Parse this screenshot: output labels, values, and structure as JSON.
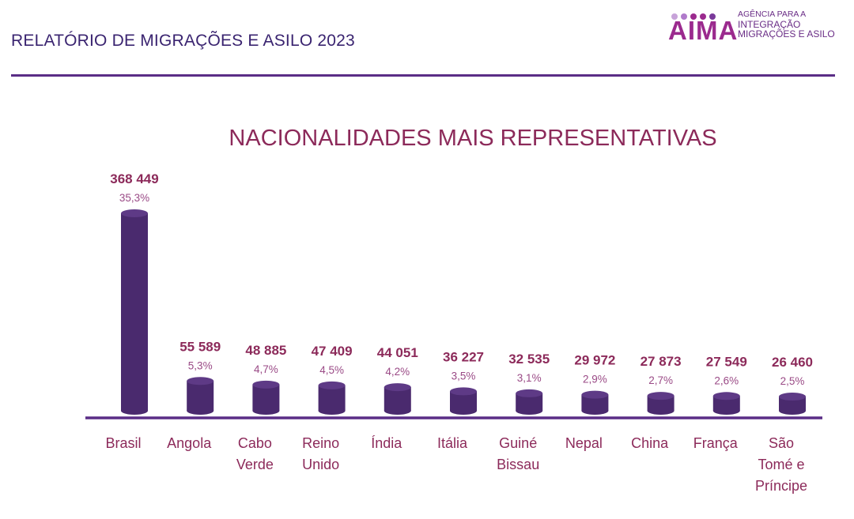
{
  "report": {
    "title": "RELATÓRIO DE MIGRAÇÕES E ASILO 2023"
  },
  "logo": {
    "word": "AIMA",
    "line1": "AGÊNCIA PARA A",
    "line2": "INTEGRAÇÃO",
    "line3": "MIGRAÇÕES E ASILO",
    "dot_colors": [
      "#c7a3d9",
      "#b07acb",
      "#9b2a8e",
      "#9b2a8e",
      "#7a3a9a"
    ]
  },
  "chart_data": {
    "type": "bar",
    "title": "NACIONALIDADES MAIS REPRESENTATIVAS",
    "xlabel": "",
    "ylabel": "",
    "categories": [
      [
        "Brasil"
      ],
      [
        "Angola"
      ],
      [
        "Cabo",
        "Verde"
      ],
      [
        "Reino",
        "Unido"
      ],
      [
        "Índia"
      ],
      [
        "Itália"
      ],
      [
        "Guiné",
        "Bissau"
      ],
      [
        "Nepal"
      ],
      [
        "China"
      ],
      [
        "França"
      ],
      [
        "São",
        "Tomé e",
        "Príncipe"
      ]
    ],
    "values": [
      368449,
      55589,
      48885,
      47409,
      44051,
      36227,
      32535,
      29972,
      27873,
      27549,
      26460
    ],
    "value_labels": [
      "368 449",
      "55 589",
      "48 885",
      "47 409",
      "44 051",
      "36 227",
      "32 535",
      "29 972",
      "27 873",
      "27 549",
      "26 460"
    ],
    "percent_labels": [
      "35,3%",
      "5,3%",
      "4,7%",
      "4,5%",
      "4,2%",
      "3,5%",
      "3,1%",
      "2,9%",
      "2,7%",
      "2,6%",
      "2,5%"
    ],
    "bar_color": "#4a2a6e",
    "bar_top_color": "#5e3a86",
    "value_color": "#8c2a5a",
    "percent_color": "#9a4a86",
    "title_color": "#8c2a5a",
    "axis_color": "#5a2d86",
    "ylim": [
      0,
      368449
    ],
    "grid": false
  }
}
